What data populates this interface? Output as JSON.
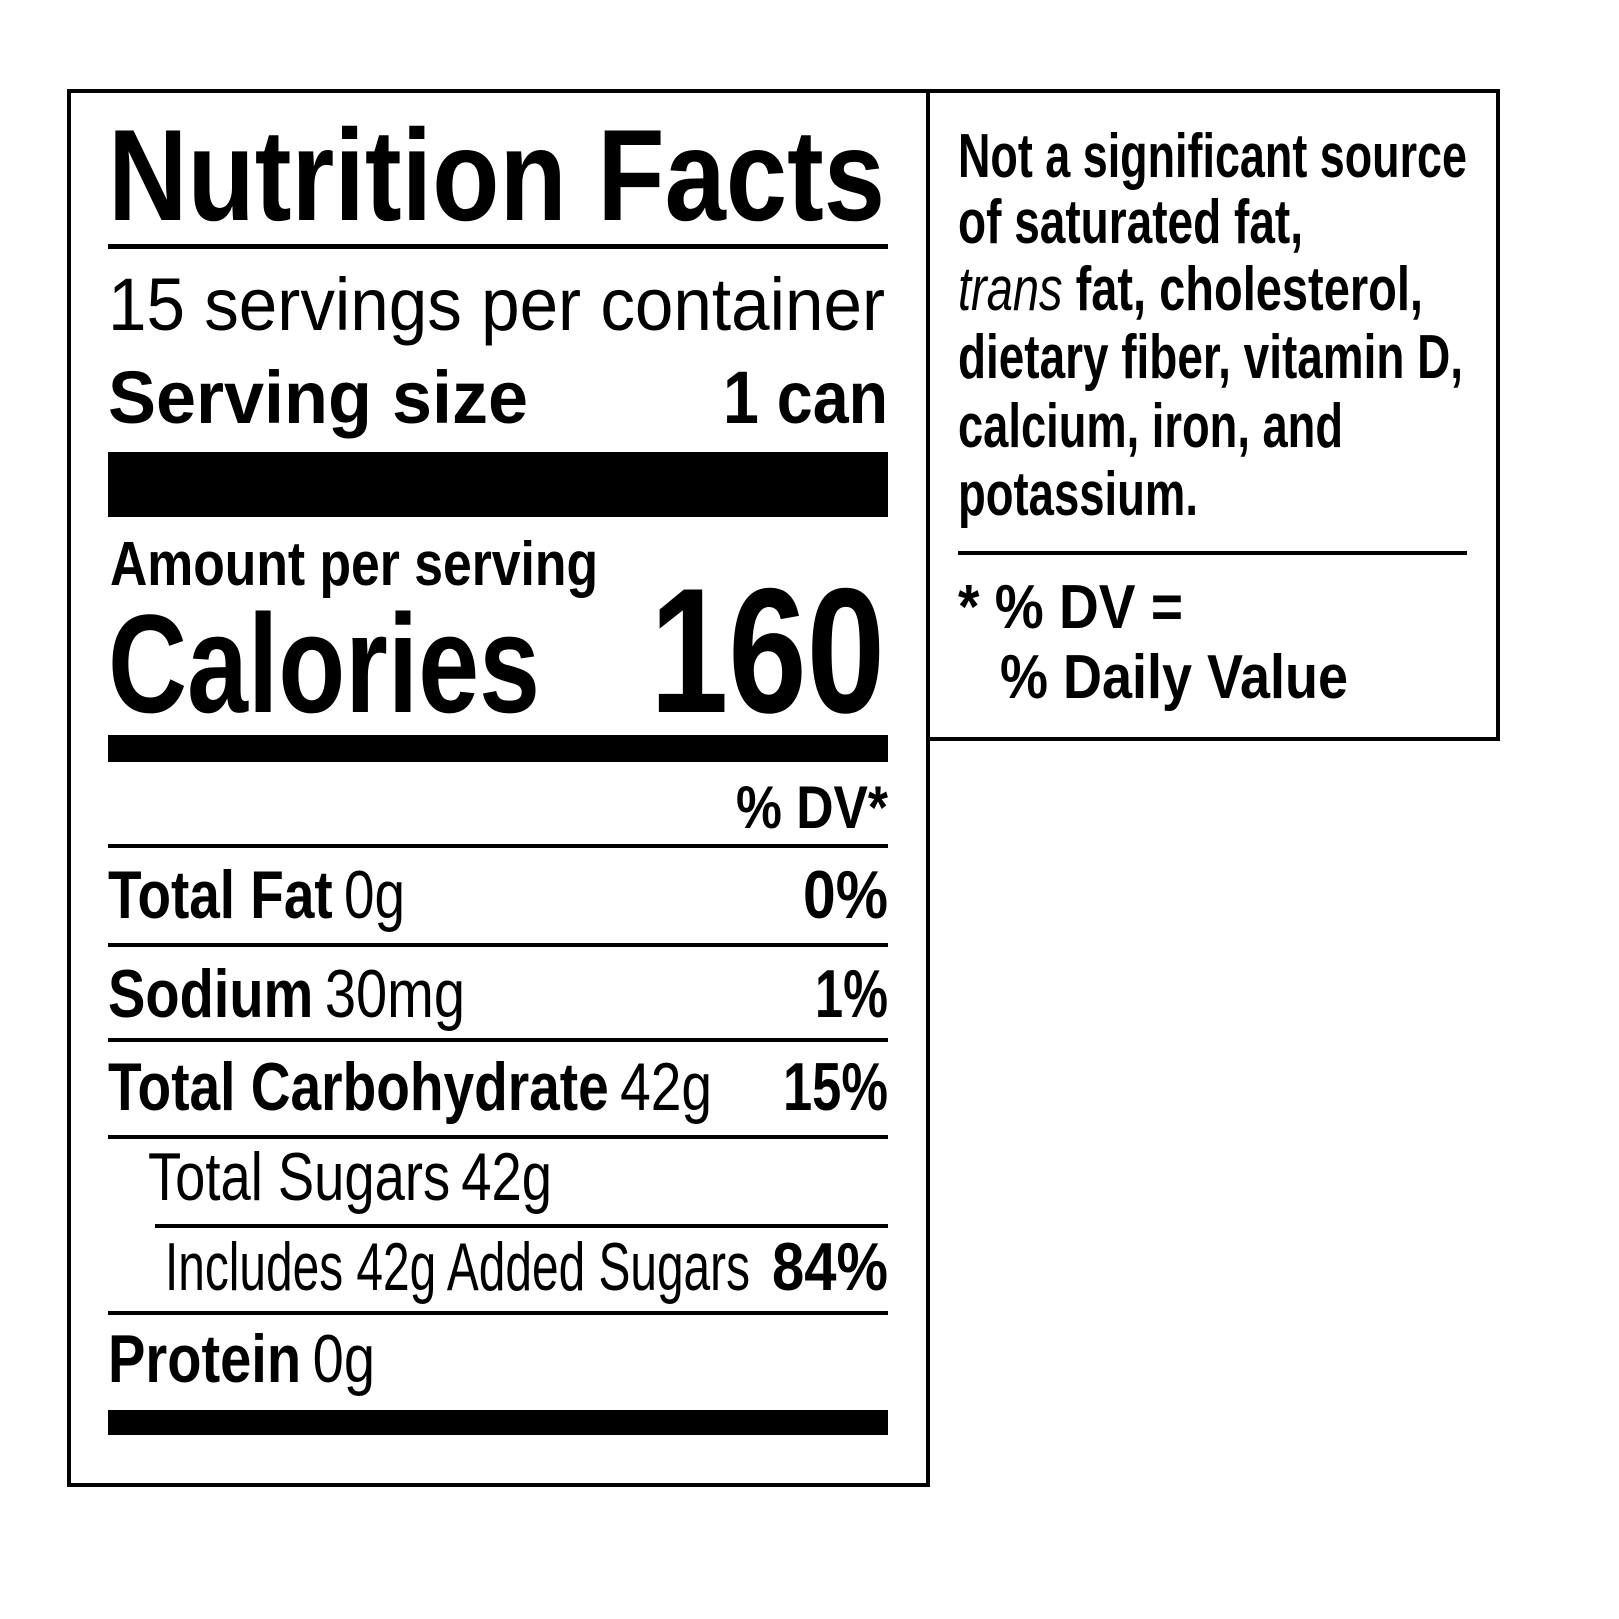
{
  "label": {
    "title": "Nutrition Facts",
    "servings": "15 servings per container",
    "serving_size": {
      "label": "Serving size",
      "value": "1 can"
    },
    "amount_per_serving": "Amount per serving",
    "calories": {
      "label": "Calories",
      "value": 160
    },
    "dv_header": "% DV*",
    "nutrients": [
      {
        "name": "Total Fat",
        "amount": "0g",
        "dv": "0%"
      },
      {
        "name": "Sodium",
        "amount": "30mg",
        "dv": "1%"
      },
      {
        "name": "Total Carbohydrate",
        "amount": "42g",
        "dv": "15%"
      },
      {
        "name": "Total Sugars",
        "amount": "42g"
      },
      {
        "name": "Includes 42g Added Sugars",
        "dv": "84%"
      },
      {
        "name": "Protein",
        "amount": "0g"
      }
    ]
  },
  "note": {
    "lines": [
      "Not a significant source",
      "of saturated fat,",
      [
        "trans",
        " fat, cholesterol,"
      ],
      "dietary fiber, vitamin D,",
      "calcium, iron, and",
      "potassium."
    ],
    "footnote": [
      "* % DV =",
      "% Daily Value"
    ]
  }
}
